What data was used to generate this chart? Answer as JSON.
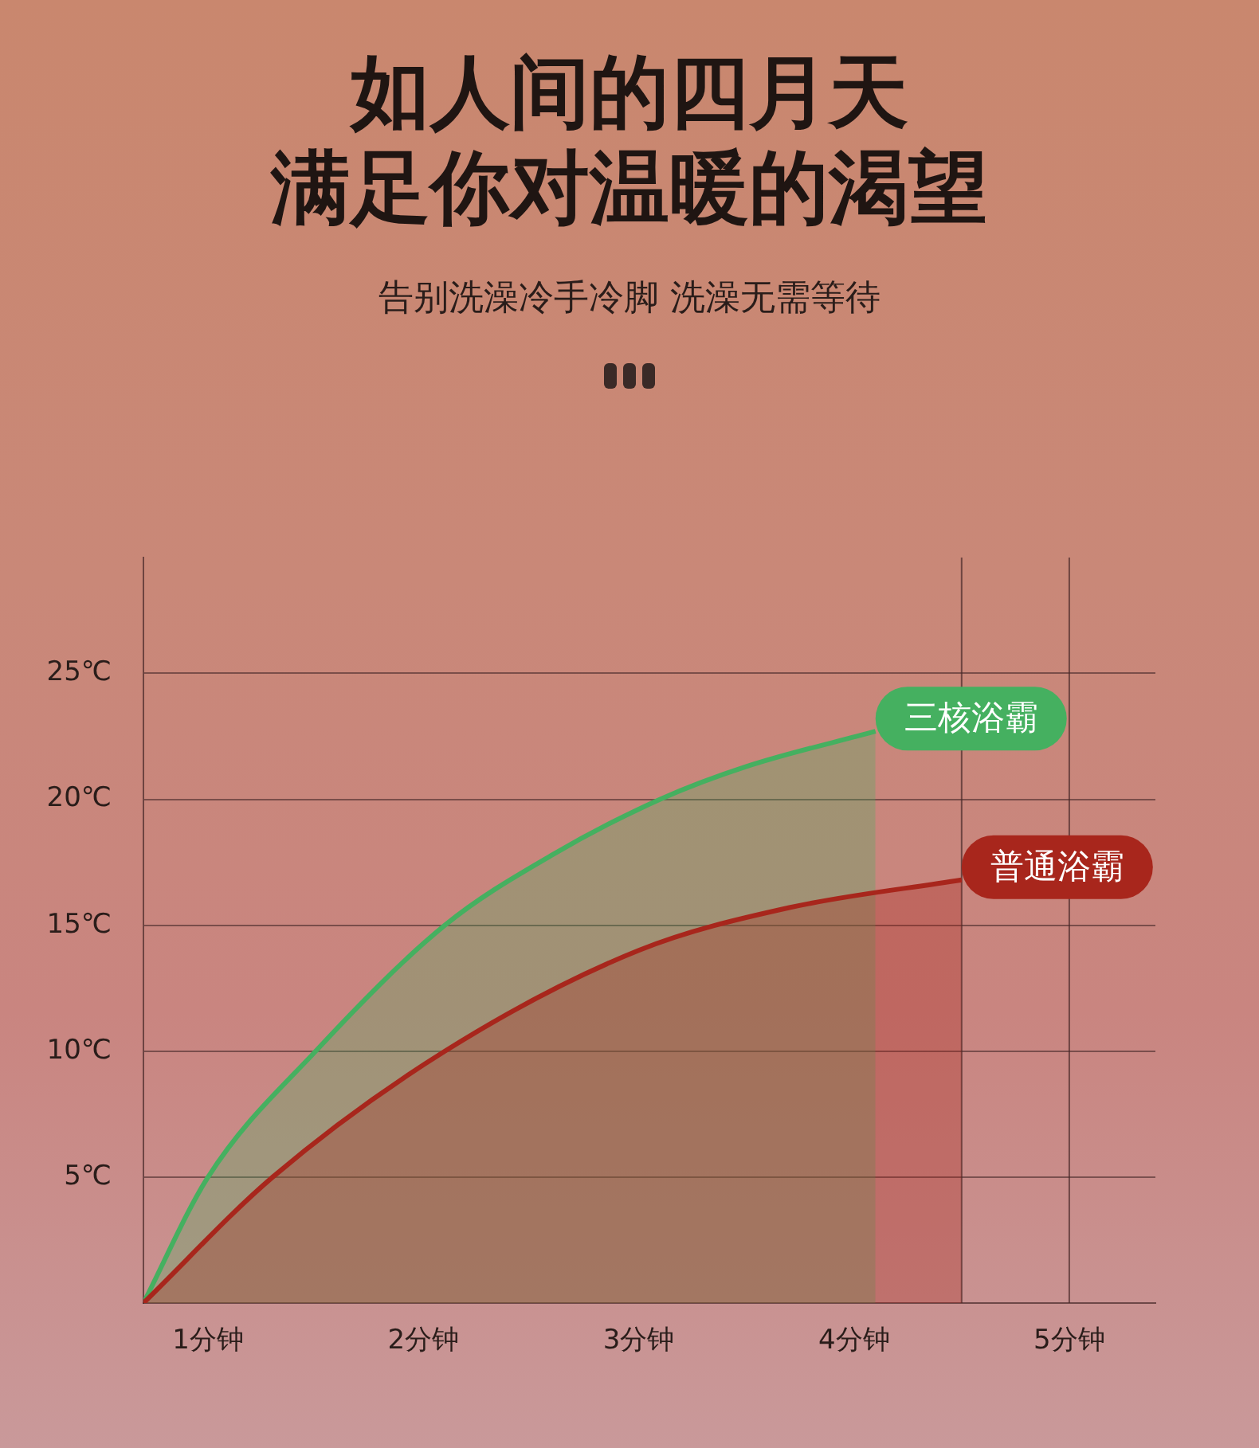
{
  "chart_data": {
    "type": "area",
    "title": "如人间的四月天",
    "subtitle": "满足你对温暖的渴望",
    "annotations": [
      "告别洗澡冷手冷脚 洗澡无需等待"
    ],
    "xlim": [
      0.7,
      5.4
    ],
    "xticks": [
      {
        "value": 1,
        "label": "1分钟"
      },
      {
        "value": 2,
        "label": "2分钟"
      },
      {
        "value": 3,
        "label": "3分钟"
      },
      {
        "value": 4,
        "label": "4分钟"
      },
      {
        "value": 5,
        "label": "5分钟"
      }
    ],
    "ylim": [
      0,
      29.6
    ],
    "yticks": [
      {
        "value": 5,
        "label": "5℃"
      },
      {
        "value": 10,
        "label": "10℃"
      },
      {
        "value": 15,
        "label": "15℃"
      },
      {
        "value": 20,
        "label": "20℃"
      },
      {
        "value": 25,
        "label": "25℃"
      }
    ],
    "grid": "y",
    "legend": false,
    "marker": "none",
    "line_style": "solid",
    "ref_lines": [
      {
        "axis": "x",
        "value": 4.5
      },
      {
        "axis": "x",
        "value": 5
      }
    ],
    "series": [
      {
        "name": "三核浴霸",
        "color": "#45b060",
        "x": [
          0.7,
          1.0,
          1.5,
          2.1,
          2.6,
          3.1,
          3.5,
          4.1
        ],
        "values": [
          0,
          5,
          10,
          15,
          17.8,
          20,
          21.3,
          22.7
        ]
      },
      {
        "name": "普通浴霸",
        "color": "#a8261c",
        "x": [
          0.7,
          1.3,
          2.1,
          3.0,
          3.7,
          4.5
        ],
        "values": [
          0,
          5,
          10,
          14,
          15.7,
          16.8
        ]
      }
    ]
  }
}
